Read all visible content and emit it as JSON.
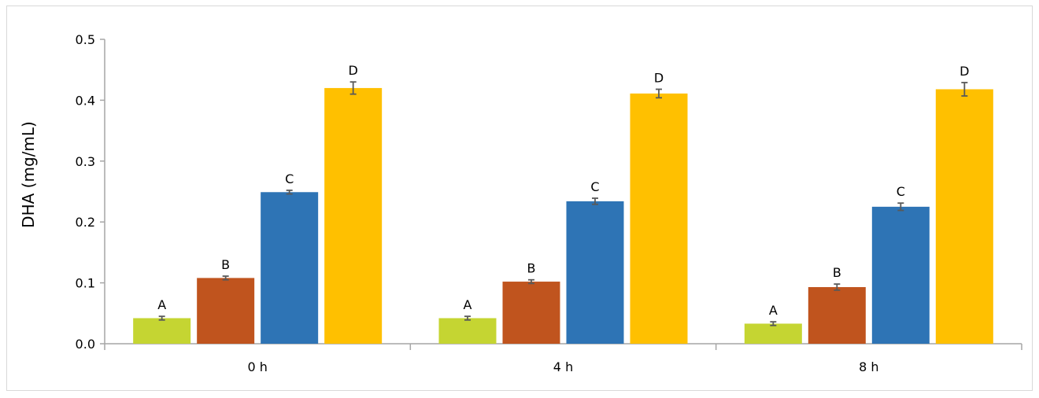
{
  "chart_data": {
    "type": "bar",
    "title": "",
    "xlabel": "",
    "ylabel": "DHA (mg/mL)",
    "ylim": [
      0,
      0.5
    ],
    "yticks": [
      "0.0",
      "0.1",
      "0.2",
      "0.3",
      "0.4",
      "0.5"
    ],
    "grid": false,
    "legend": "none",
    "categories": [
      "0 h",
      "4 h",
      "8 h"
    ],
    "series": [
      {
        "color": "#c5d532",
        "values": [
          0.042,
          0.042,
          0.033
        ],
        "errors": [
          0.003,
          0.003,
          0.003
        ],
        "labels": [
          "A",
          "A",
          "A"
        ]
      },
      {
        "color": "#c0541e",
        "values": [
          0.108,
          0.102,
          0.093
        ],
        "errors": [
          0.003,
          0.003,
          0.005
        ],
        "labels": [
          "B",
          "B",
          "B"
        ]
      },
      {
        "color": "#2e74b5",
        "values": [
          0.249,
          0.234,
          0.225
        ],
        "errors": [
          0.003,
          0.005,
          0.006
        ],
        "labels": [
          "C",
          "C",
          "C"
        ]
      },
      {
        "color": "#ffc000",
        "values": [
          0.42,
          0.411,
          0.418
        ],
        "errors": [
          0.01,
          0.007,
          0.011
        ],
        "labels": [
          "D",
          "D",
          "D"
        ]
      }
    ]
  }
}
